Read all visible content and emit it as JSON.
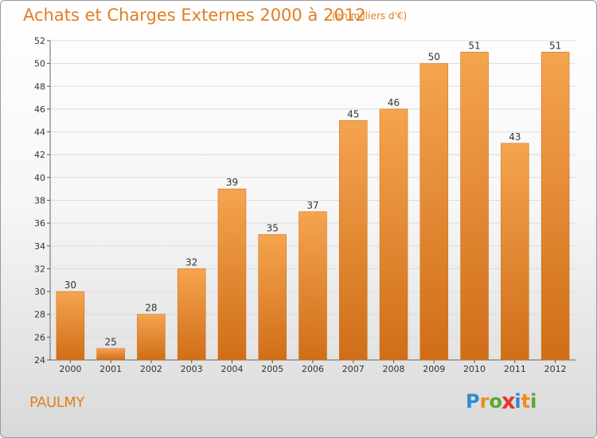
{
  "header": {
    "title": "Achats et Charges Externes 2000 à 2012",
    "unit": "(en milliers d'€)"
  },
  "commune": "PAULMY",
  "logo": {
    "letters": [
      "P",
      "r",
      "o",
      "x",
      "i",
      "t",
      "i"
    ],
    "colors": [
      "#2f8ad2",
      "#f28a1e",
      "#5aa832",
      "#e23a2e",
      "#2f8ad2",
      "#f28a1e",
      "#5aa832"
    ]
  },
  "chart_data": {
    "type": "bar",
    "title": "Achats et Charges Externes 2000 à 2012",
    "subtitle": "(en milliers d'€)",
    "categories": [
      "2000",
      "2001",
      "2002",
      "2003",
      "2004",
      "2005",
      "2006",
      "2007",
      "2008",
      "2009",
      "2010",
      "2011",
      "2012"
    ],
    "values": [
      30,
      25,
      28,
      32,
      39,
      35,
      37,
      45,
      46,
      50,
      51,
      43,
      51
    ],
    "ylim": [
      24,
      52
    ],
    "yticks": [
      24,
      26,
      28,
      30,
      32,
      34,
      36,
      38,
      40,
      42,
      44,
      46,
      48,
      50,
      52
    ],
    "grid": true,
    "bar_color_top": "#f5a44f",
    "bar_color_bottom": "#d06e18"
  }
}
